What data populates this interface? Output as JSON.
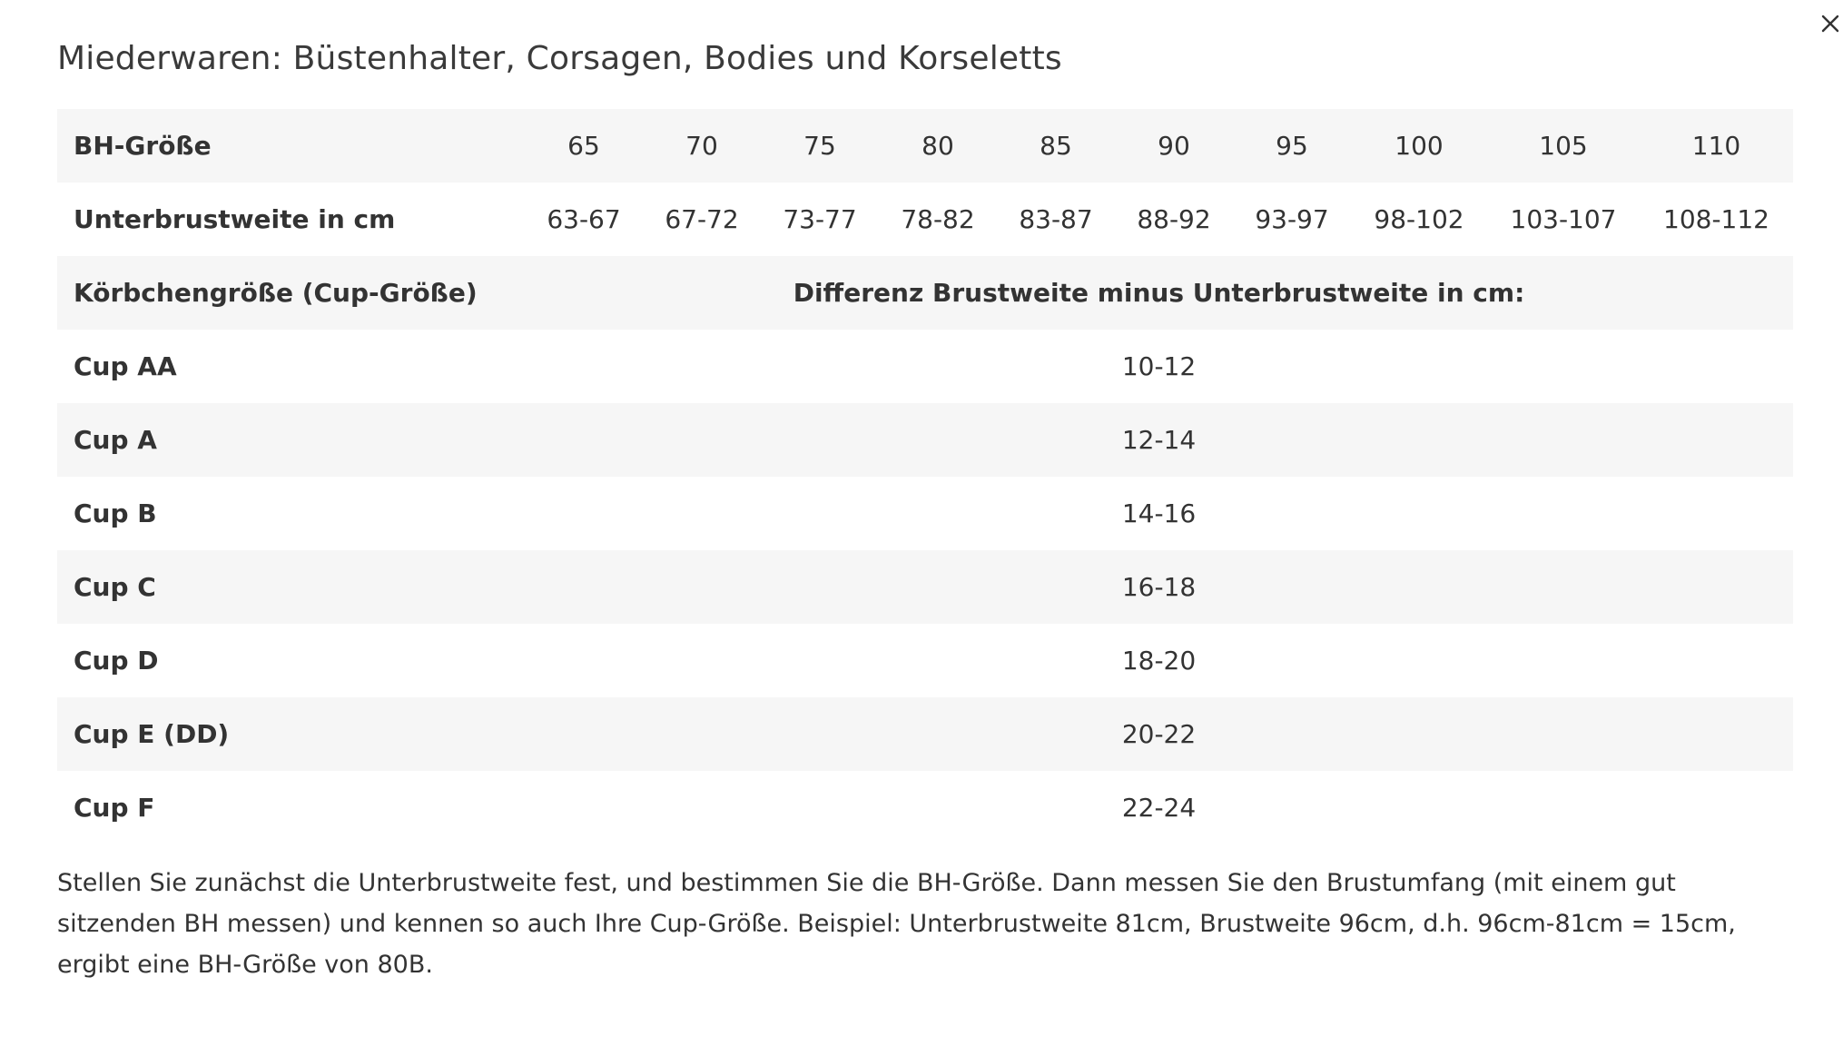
{
  "dialog": {
    "title": "Miederwaren: Büstenhalter, Corsagen, Bodies und Korseletts",
    "close_symbol": "×"
  },
  "table": {
    "size_row": {
      "label": "BH-Größe",
      "values": [
        "65",
        "70",
        "75",
        "80",
        "85",
        "90",
        "95",
        "100",
        "105",
        "110"
      ]
    },
    "underbust_row": {
      "label": "Unterbrustweite in cm",
      "values": [
        "63-67",
        "67-72",
        "73-77",
        "78-82",
        "83-87",
        "88-92",
        "93-97",
        "98-102",
        "103-107",
        "108-112"
      ]
    },
    "cup_header": {
      "label": "Körbchengröße (Cup-Größe)",
      "value": "Differenz Brustweite minus Unterbrustweite in cm:"
    },
    "cups": [
      {
        "label": "Cup AA",
        "value": "10-12"
      },
      {
        "label": "Cup A",
        "value": "12-14"
      },
      {
        "label": "Cup B",
        "value": "14-16"
      },
      {
        "label": "Cup C",
        "value": "16-18"
      },
      {
        "label": "Cup D",
        "value": "18-20"
      },
      {
        "label": "Cup E (DD)",
        "value": "20-22"
      },
      {
        "label": "Cup F",
        "value": "22-24"
      }
    ]
  },
  "footnote": "Stellen Sie zunächst die Unterbrustweite fest, und bestimmen Sie die BH-Größe. Dann messen Sie den Brustumfang (mit einem gut sitzenden BH messen) und kennen so auch Ihre Cup-Größe. Beispiel: Unterbrustweite 81cm, Brustweite 96cm, d.h. 96cm-81cm = 15cm, ergibt eine BH-Größe von 80B.",
  "colors": {
    "row_shade": "#f6f6f6",
    "text": "#333333",
    "background": "#ffffff"
  },
  "icons": {
    "close": "close-icon"
  }
}
